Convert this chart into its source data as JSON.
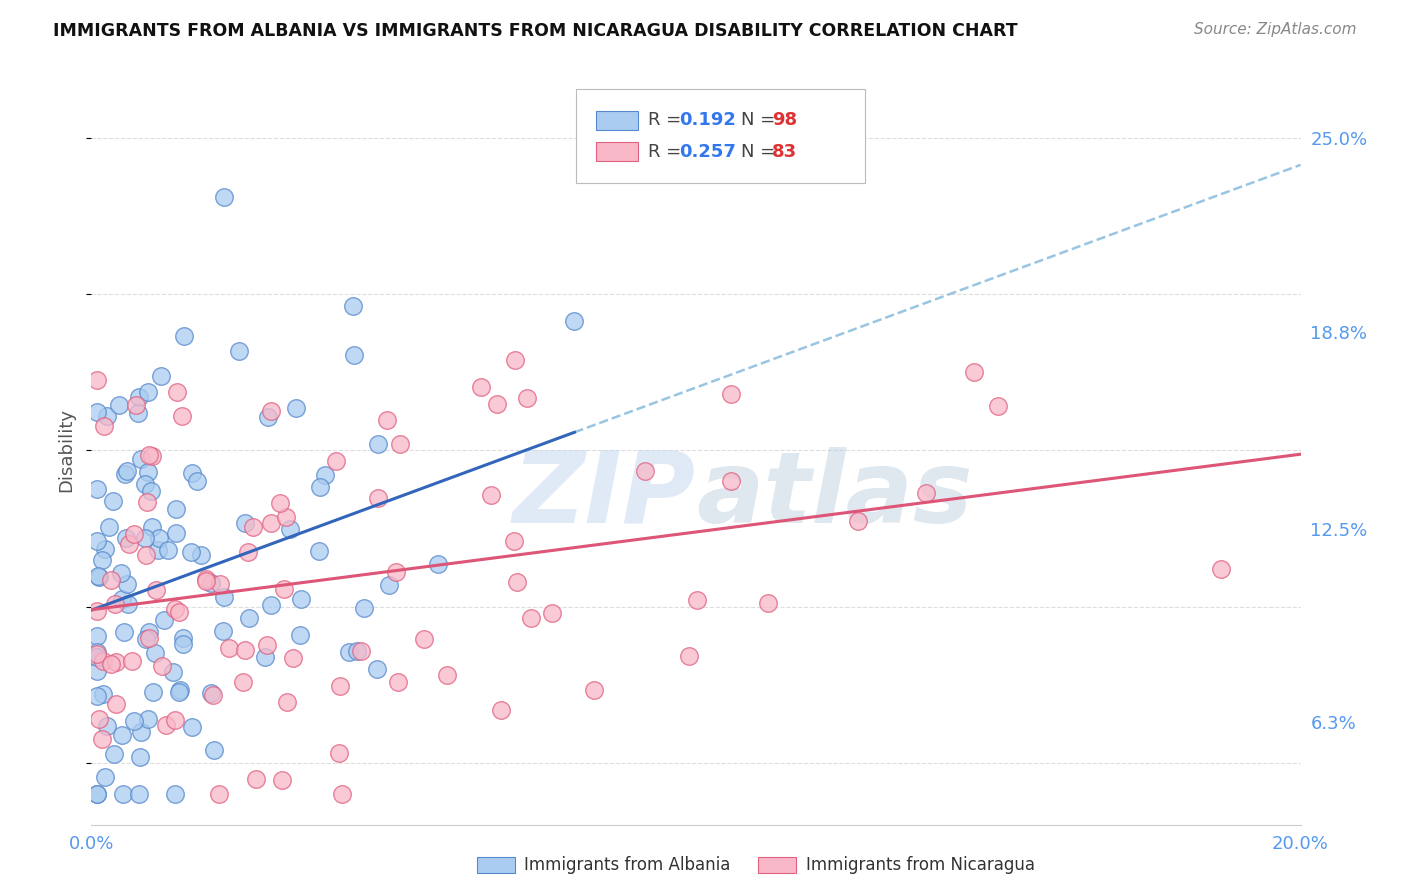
{
  "title": "IMMIGRANTS FROM ALBANIA VS IMMIGRANTS FROM NICARAGUA DISABILITY CORRELATION CHART",
  "source": "Source: ZipAtlas.com",
  "ylabel": "Disability",
  "xlim": [
    0.0,
    0.2
  ],
  "ylim": [
    0.03,
    0.27
  ],
  "yticks": [
    0.063,
    0.125,
    0.188,
    0.25
  ],
  "ytick_labels": [
    "6.3%",
    "12.5%",
    "18.8%",
    "25.0%"
  ],
  "xticks": [
    0.0,
    0.05,
    0.1,
    0.15,
    0.2
  ],
  "xtick_labels": [
    "0.0%",
    "",
    "",
    "",
    "20.0%"
  ],
  "albania_color": "#aaccf0",
  "albania_edge": "#5588cc",
  "nicaragua_color": "#f8b8c8",
  "nicaragua_edge": "#e06080",
  "albania_line_color": "#3366bb",
  "nicaragua_line_color": "#dd5577",
  "watermark_color": "#c8daf0",
  "background_color": "#ffffff",
  "grid_color": "#dddddd",
  "right_axis_color": "#5599ee",
  "albania_R": 0.192,
  "albania_N": 98,
  "nicaragua_R": 0.257,
  "nicaragua_N": 83,
  "albania_seed": 12,
  "nicaragua_seed": 99
}
